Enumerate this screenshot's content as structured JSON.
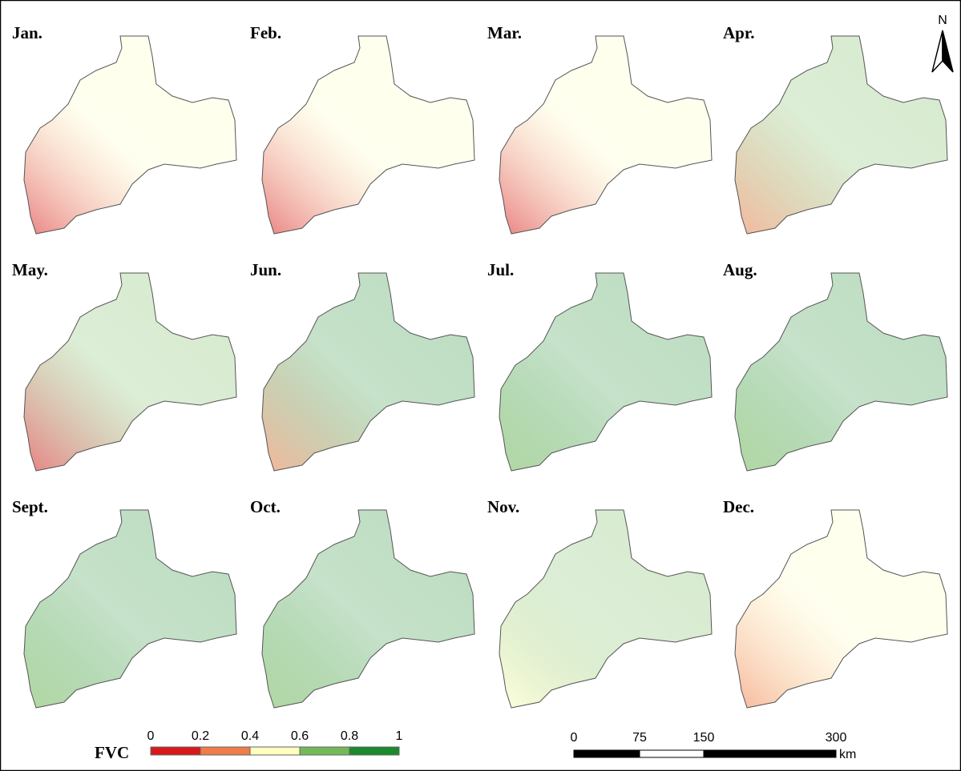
{
  "panels": [
    {
      "label": "Jan."
    },
    {
      "label": "Feb."
    },
    {
      "label": "Mar."
    },
    {
      "label": "Apr."
    },
    {
      "label": "May."
    },
    {
      "label": "Jun."
    },
    {
      "label": "Jul."
    },
    {
      "label": "Aug."
    },
    {
      "label": "Sept."
    },
    {
      "label": "Oct."
    },
    {
      "label": "Nov."
    },
    {
      "label": "Dec."
    }
  ],
  "legend": {
    "title": "FVC",
    "ticks": [
      "0",
      "0.2",
      "0.4",
      "0.6",
      "0.8",
      "1"
    ],
    "colors": [
      "#d7191c",
      "#f07c4a",
      "#ffffbf",
      "#74b95a",
      "#1a8a2a"
    ]
  },
  "scale_bar": {
    "ticks": [
      "0",
      "75",
      "150",
      "300"
    ],
    "unit": "km"
  },
  "north": "N"
}
